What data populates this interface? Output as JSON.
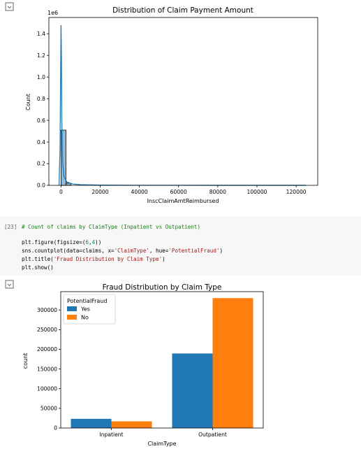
{
  "output_icon": "output-toggle-icon",
  "chart1": {
    "title": "Distribution of Claim Payment Amount",
    "xlabel": "InscClaimAmtReimbursed",
    "ylabel": "Count",
    "offset_text": "1e6"
  },
  "cell23": {
    "prompt": "[23]",
    "lines": [
      "# Count of claims by ClaimType (Inpatient vs Outpatient)",
      "plt.figure(figsize=(6,4))",
      "sns.countplot(data=claims, x='ClaimType', hue='PotentialFraud')",
      "plt.title('Fraud Distribution by Claim Type')",
      "plt.show()"
    ]
  },
  "chart2": {
    "title": "Fraud Distribution by Claim Type",
    "xlabel": "ClaimType",
    "ylabel": "count",
    "legend_title": "PotentialFraud"
  },
  "chart_data": [
    {
      "type": "bar",
      "title": "Distribution of Claim Payment Amount",
      "xlabel": "InscClaimAmtReimbursed",
      "ylabel": "Count",
      "y_offset_text": "1e6",
      "x_ticks": [
        0,
        20000,
        40000,
        60000,
        80000,
        100000,
        120000
      ],
      "y_ticks": [
        0.0,
        0.2,
        0.4,
        0.6,
        0.8,
        1.0,
        1.2,
        1.4
      ],
      "xlim": [
        -6200,
        131000
      ],
      "ylim": [
        0,
        1.55
      ],
      "bins": [
        {
          "x0": 0,
          "x1": 2500,
          "count": 0.51
        },
        {
          "x0": 2500,
          "x1": 5000,
          "count": 0.02
        }
      ],
      "kde": [
        [
          -1000,
          0.0
        ],
        [
          -500,
          0.35
        ],
        [
          0,
          1.48
        ],
        [
          200,
          1.2
        ],
        [
          400,
          0.6
        ],
        [
          800,
          0.22
        ],
        [
          1500,
          0.08
        ],
        [
          3000,
          0.03
        ],
        [
          6000,
          0.012
        ],
        [
          10000,
          0.006
        ],
        [
          20000,
          0.002
        ],
        [
          40000,
          0.001
        ],
        [
          80000,
          0.0005
        ],
        [
          125000,
          0.0003
        ]
      ],
      "color": "#1f77b4",
      "grid": false
    },
    {
      "type": "bar",
      "title": "Fraud Distribution by Claim Type",
      "xlabel": "ClaimType",
      "ylabel": "count",
      "categories": [
        "Inpatient",
        "Outpatient"
      ],
      "series": [
        {
          "name": "Yes",
          "values": [
            23400,
            189400
          ],
          "color": "#1f77b4"
        },
        {
          "name": "No",
          "values": [
            17000,
            330000
          ],
          "color": "#ff7f0e"
        }
      ],
      "y_ticks": [
        0,
        50000,
        100000,
        150000,
        200000,
        250000,
        300000
      ],
      "ylim": [
        0,
        346500
      ],
      "legend_title": "PotentialFraud",
      "legend_position": "top-left",
      "grid": false
    }
  ]
}
